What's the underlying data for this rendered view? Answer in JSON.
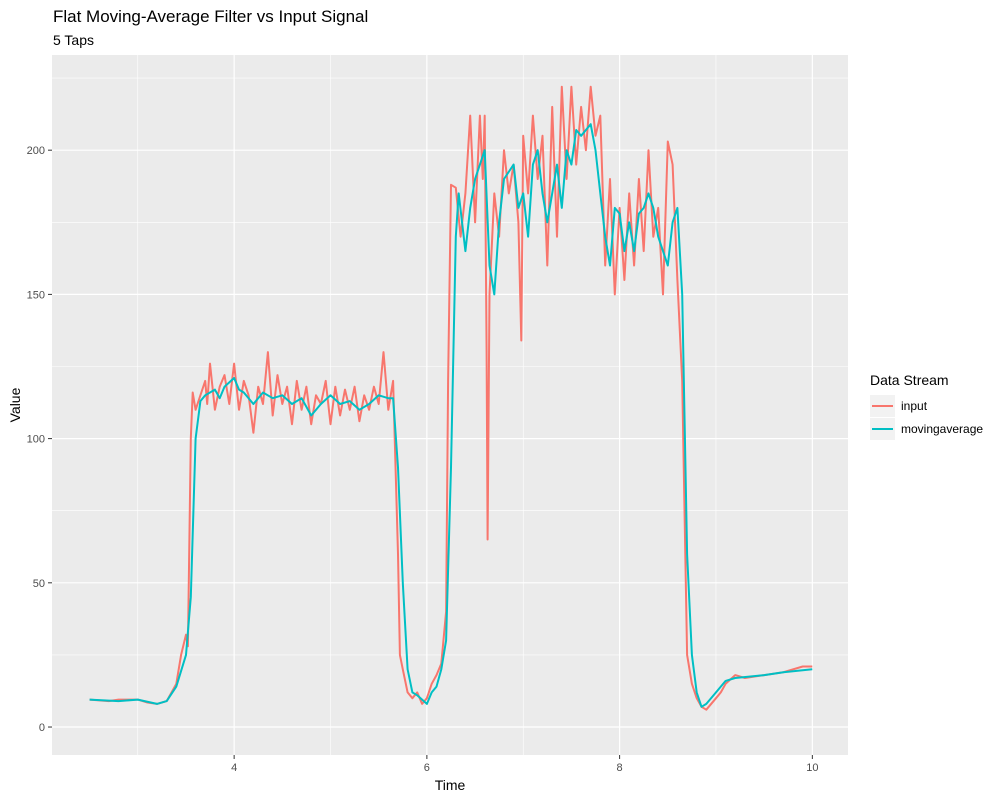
{
  "chart_data": {
    "type": "line",
    "title": "Flat Moving-Average Filter vs Input Signal",
    "subtitle": "5 Taps",
    "xlabel": "Time",
    "ylabel": "Value",
    "xlim": [
      2.11,
      10.37
    ],
    "ylim": [
      -9.7,
      233
    ],
    "xticks": [
      4,
      6,
      8,
      10
    ],
    "xtick_labels": [
      "4",
      "6",
      "8",
      "10"
    ],
    "yticks": [
      0,
      50,
      100,
      150,
      200
    ],
    "ytick_labels": [
      "0",
      "50",
      "100",
      "150",
      "200"
    ],
    "grid": true,
    "legend": {
      "title": "Data Stream",
      "position": "right"
    },
    "series": [
      {
        "name": "input",
        "color": "#F8766D",
        "points": [
          [
            2.5,
            9.5
          ],
          [
            2.7,
            9
          ],
          [
            2.8,
            9.5
          ],
          [
            3.0,
            9.5
          ],
          [
            3.1,
            8.5
          ],
          [
            3.2,
            8
          ],
          [
            3.3,
            9
          ],
          [
            3.4,
            15
          ],
          [
            3.45,
            25
          ],
          [
            3.5,
            32
          ],
          [
            3.52,
            28
          ],
          [
            3.55,
            100
          ],
          [
            3.57,
            116
          ],
          [
            3.6,
            110
          ],
          [
            3.65,
            115
          ],
          [
            3.7,
            120
          ],
          [
            3.72,
            112
          ],
          [
            3.75,
            126
          ],
          [
            3.8,
            110
          ],
          [
            3.85,
            118
          ],
          [
            3.9,
            122
          ],
          [
            3.95,
            112
          ],
          [
            4.0,
            126
          ],
          [
            4.05,
            110
          ],
          [
            4.1,
            120
          ],
          [
            4.15,
            115
          ],
          [
            4.2,
            102
          ],
          [
            4.25,
            118
          ],
          [
            4.3,
            112
          ],
          [
            4.35,
            130
          ],
          [
            4.4,
            108
          ],
          [
            4.45,
            122
          ],
          [
            4.5,
            112
          ],
          [
            4.55,
            118
          ],
          [
            4.6,
            105
          ],
          [
            4.65,
            120
          ],
          [
            4.7,
            110
          ],
          [
            4.75,
            118
          ],
          [
            4.8,
            105
          ],
          [
            4.85,
            115
          ],
          [
            4.9,
            112
          ],
          [
            4.95,
            120
          ],
          [
            5.0,
            105
          ],
          [
            5.05,
            118
          ],
          [
            5.1,
            108
          ],
          [
            5.15,
            117
          ],
          [
            5.2,
            110
          ],
          [
            5.25,
            118
          ],
          [
            5.3,
            106
          ],
          [
            5.35,
            115
          ],
          [
            5.4,
            110
          ],
          [
            5.45,
            118
          ],
          [
            5.5,
            112
          ],
          [
            5.55,
            130
          ],
          [
            5.6,
            110
          ],
          [
            5.65,
            120
          ],
          [
            5.7,
            60
          ],
          [
            5.72,
            25
          ],
          [
            5.75,
            20
          ],
          [
            5.8,
            12
          ],
          [
            5.85,
            10
          ],
          [
            5.9,
            12
          ],
          [
            5.95,
            8
          ],
          [
            6.0,
            10
          ],
          [
            6.05,
            15
          ],
          [
            6.1,
            18
          ],
          [
            6.15,
            22
          ],
          [
            6.2,
            40
          ],
          [
            6.22,
            120
          ],
          [
            6.25,
            188
          ],
          [
            6.3,
            187
          ],
          [
            6.35,
            170
          ],
          [
            6.4,
            185
          ],
          [
            6.45,
            212
          ],
          [
            6.5,
            175
          ],
          [
            6.55,
            212
          ],
          [
            6.58,
            190
          ],
          [
            6.6,
            212
          ],
          [
            6.62,
            130
          ],
          [
            6.63,
            65
          ],
          [
            6.65,
            150
          ],
          [
            6.7,
            185
          ],
          [
            6.75,
            170
          ],
          [
            6.8,
            200
          ],
          [
            6.85,
            185
          ],
          [
            6.9,
            195
          ],
          [
            6.95,
            175
          ],
          [
            6.98,
            134
          ],
          [
            7.0,
            205
          ],
          [
            7.05,
            185
          ],
          [
            7.1,
            212
          ],
          [
            7.15,
            190
          ],
          [
            7.2,
            205
          ],
          [
            7.25,
            160
          ],
          [
            7.3,
            215
          ],
          [
            7.35,
            170
          ],
          [
            7.4,
            222
          ],
          [
            7.45,
            190
          ],
          [
            7.5,
            222
          ],
          [
            7.55,
            195
          ],
          [
            7.6,
            215
          ],
          [
            7.65,
            200
          ],
          [
            7.7,
            222
          ],
          [
            7.75,
            205
          ],
          [
            7.8,
            212
          ],
          [
            7.85,
            160
          ],
          [
            7.9,
            190
          ],
          [
            7.95,
            150
          ],
          [
            8.0,
            180
          ],
          [
            8.05,
            155
          ],
          [
            8.1,
            185
          ],
          [
            8.15,
            160
          ],
          [
            8.2,
            190
          ],
          [
            8.25,
            165
          ],
          [
            8.3,
            200
          ],
          [
            8.35,
            170
          ],
          [
            8.4,
            180
          ],
          [
            8.45,
            150
          ],
          [
            8.5,
            203
          ],
          [
            8.55,
            195
          ],
          [
            8.6,
            155
          ],
          [
            8.65,
            120
          ],
          [
            8.7,
            25
          ],
          [
            8.75,
            15
          ],
          [
            8.8,
            10
          ],
          [
            8.85,
            7
          ],
          [
            8.9,
            6
          ],
          [
            9.0,
            10
          ],
          [
            9.05,
            12
          ],
          [
            9.1,
            15
          ],
          [
            9.2,
            18
          ],
          [
            9.3,
            17
          ],
          [
            9.5,
            18
          ],
          [
            9.7,
            19
          ],
          [
            9.9,
            21
          ],
          [
            10.0,
            21
          ]
        ]
      },
      {
        "name": "movingaverage",
        "color": "#00BFC4",
        "points": [
          [
            2.5,
            9.5
          ],
          [
            2.8,
            9
          ],
          [
            3.0,
            9.5
          ],
          [
            3.2,
            8
          ],
          [
            3.3,
            9
          ],
          [
            3.4,
            14
          ],
          [
            3.5,
            25
          ],
          [
            3.55,
            45
          ],
          [
            3.6,
            100
          ],
          [
            3.65,
            113
          ],
          [
            3.7,
            115
          ],
          [
            3.8,
            117
          ],
          [
            3.85,
            114
          ],
          [
            3.9,
            118
          ],
          [
            4.0,
            121
          ],
          [
            4.05,
            117
          ],
          [
            4.1,
            116
          ],
          [
            4.2,
            112
          ],
          [
            4.3,
            116
          ],
          [
            4.4,
            114
          ],
          [
            4.5,
            115
          ],
          [
            4.6,
            112
          ],
          [
            4.7,
            114
          ],
          [
            4.8,
            108
          ],
          [
            4.9,
            112
          ],
          [
            5.0,
            115
          ],
          [
            5.1,
            112
          ],
          [
            5.2,
            113
          ],
          [
            5.3,
            110
          ],
          [
            5.4,
            112
          ],
          [
            5.5,
            115
          ],
          [
            5.6,
            114
          ],
          [
            5.65,
            114
          ],
          [
            5.7,
            90
          ],
          [
            5.75,
            50
          ],
          [
            5.8,
            20
          ],
          [
            5.85,
            12
          ],
          [
            5.9,
            11
          ],
          [
            6.0,
            8
          ],
          [
            6.05,
            12
          ],
          [
            6.1,
            14
          ],
          [
            6.15,
            20
          ],
          [
            6.2,
            30
          ],
          [
            6.25,
            90
          ],
          [
            6.3,
            170
          ],
          [
            6.33,
            185
          ],
          [
            6.4,
            165
          ],
          [
            6.45,
            180
          ],
          [
            6.5,
            190
          ],
          [
            6.55,
            195
          ],
          [
            6.6,
            200
          ],
          [
            6.65,
            160
          ],
          [
            6.7,
            150
          ],
          [
            6.75,
            175
          ],
          [
            6.8,
            190
          ],
          [
            6.9,
            195
          ],
          [
            6.95,
            180
          ],
          [
            7.0,
            185
          ],
          [
            7.05,
            170
          ],
          [
            7.1,
            195
          ],
          [
            7.15,
            200
          ],
          [
            7.2,
            185
          ],
          [
            7.25,
            175
          ],
          [
            7.3,
            185
          ],
          [
            7.35,
            195
          ],
          [
            7.4,
            180
          ],
          [
            7.45,
            200
          ],
          [
            7.5,
            195
          ],
          [
            7.55,
            207
          ],
          [
            7.6,
            205
          ],
          [
            7.7,
            209
          ],
          [
            7.75,
            200
          ],
          [
            7.8,
            185
          ],
          [
            7.85,
            170
          ],
          [
            7.9,
            160
          ],
          [
            7.95,
            180
          ],
          [
            8.0,
            178
          ],
          [
            8.05,
            165
          ],
          [
            8.1,
            175
          ],
          [
            8.15,
            165
          ],
          [
            8.2,
            178
          ],
          [
            8.25,
            180
          ],
          [
            8.3,
            185
          ],
          [
            8.35,
            180
          ],
          [
            8.4,
            170
          ],
          [
            8.45,
            165
          ],
          [
            8.5,
            160
          ],
          [
            8.55,
            175
          ],
          [
            8.6,
            180
          ],
          [
            8.65,
            150
          ],
          [
            8.7,
            60
          ],
          [
            8.75,
            25
          ],
          [
            8.8,
            12
          ],
          [
            8.85,
            7
          ],
          [
            8.9,
            8
          ],
          [
            9.0,
            12
          ],
          [
            9.1,
            16
          ],
          [
            9.2,
            17
          ],
          [
            9.5,
            18
          ],
          [
            9.7,
            19
          ],
          [
            10.0,
            20
          ]
        ]
      }
    ]
  }
}
